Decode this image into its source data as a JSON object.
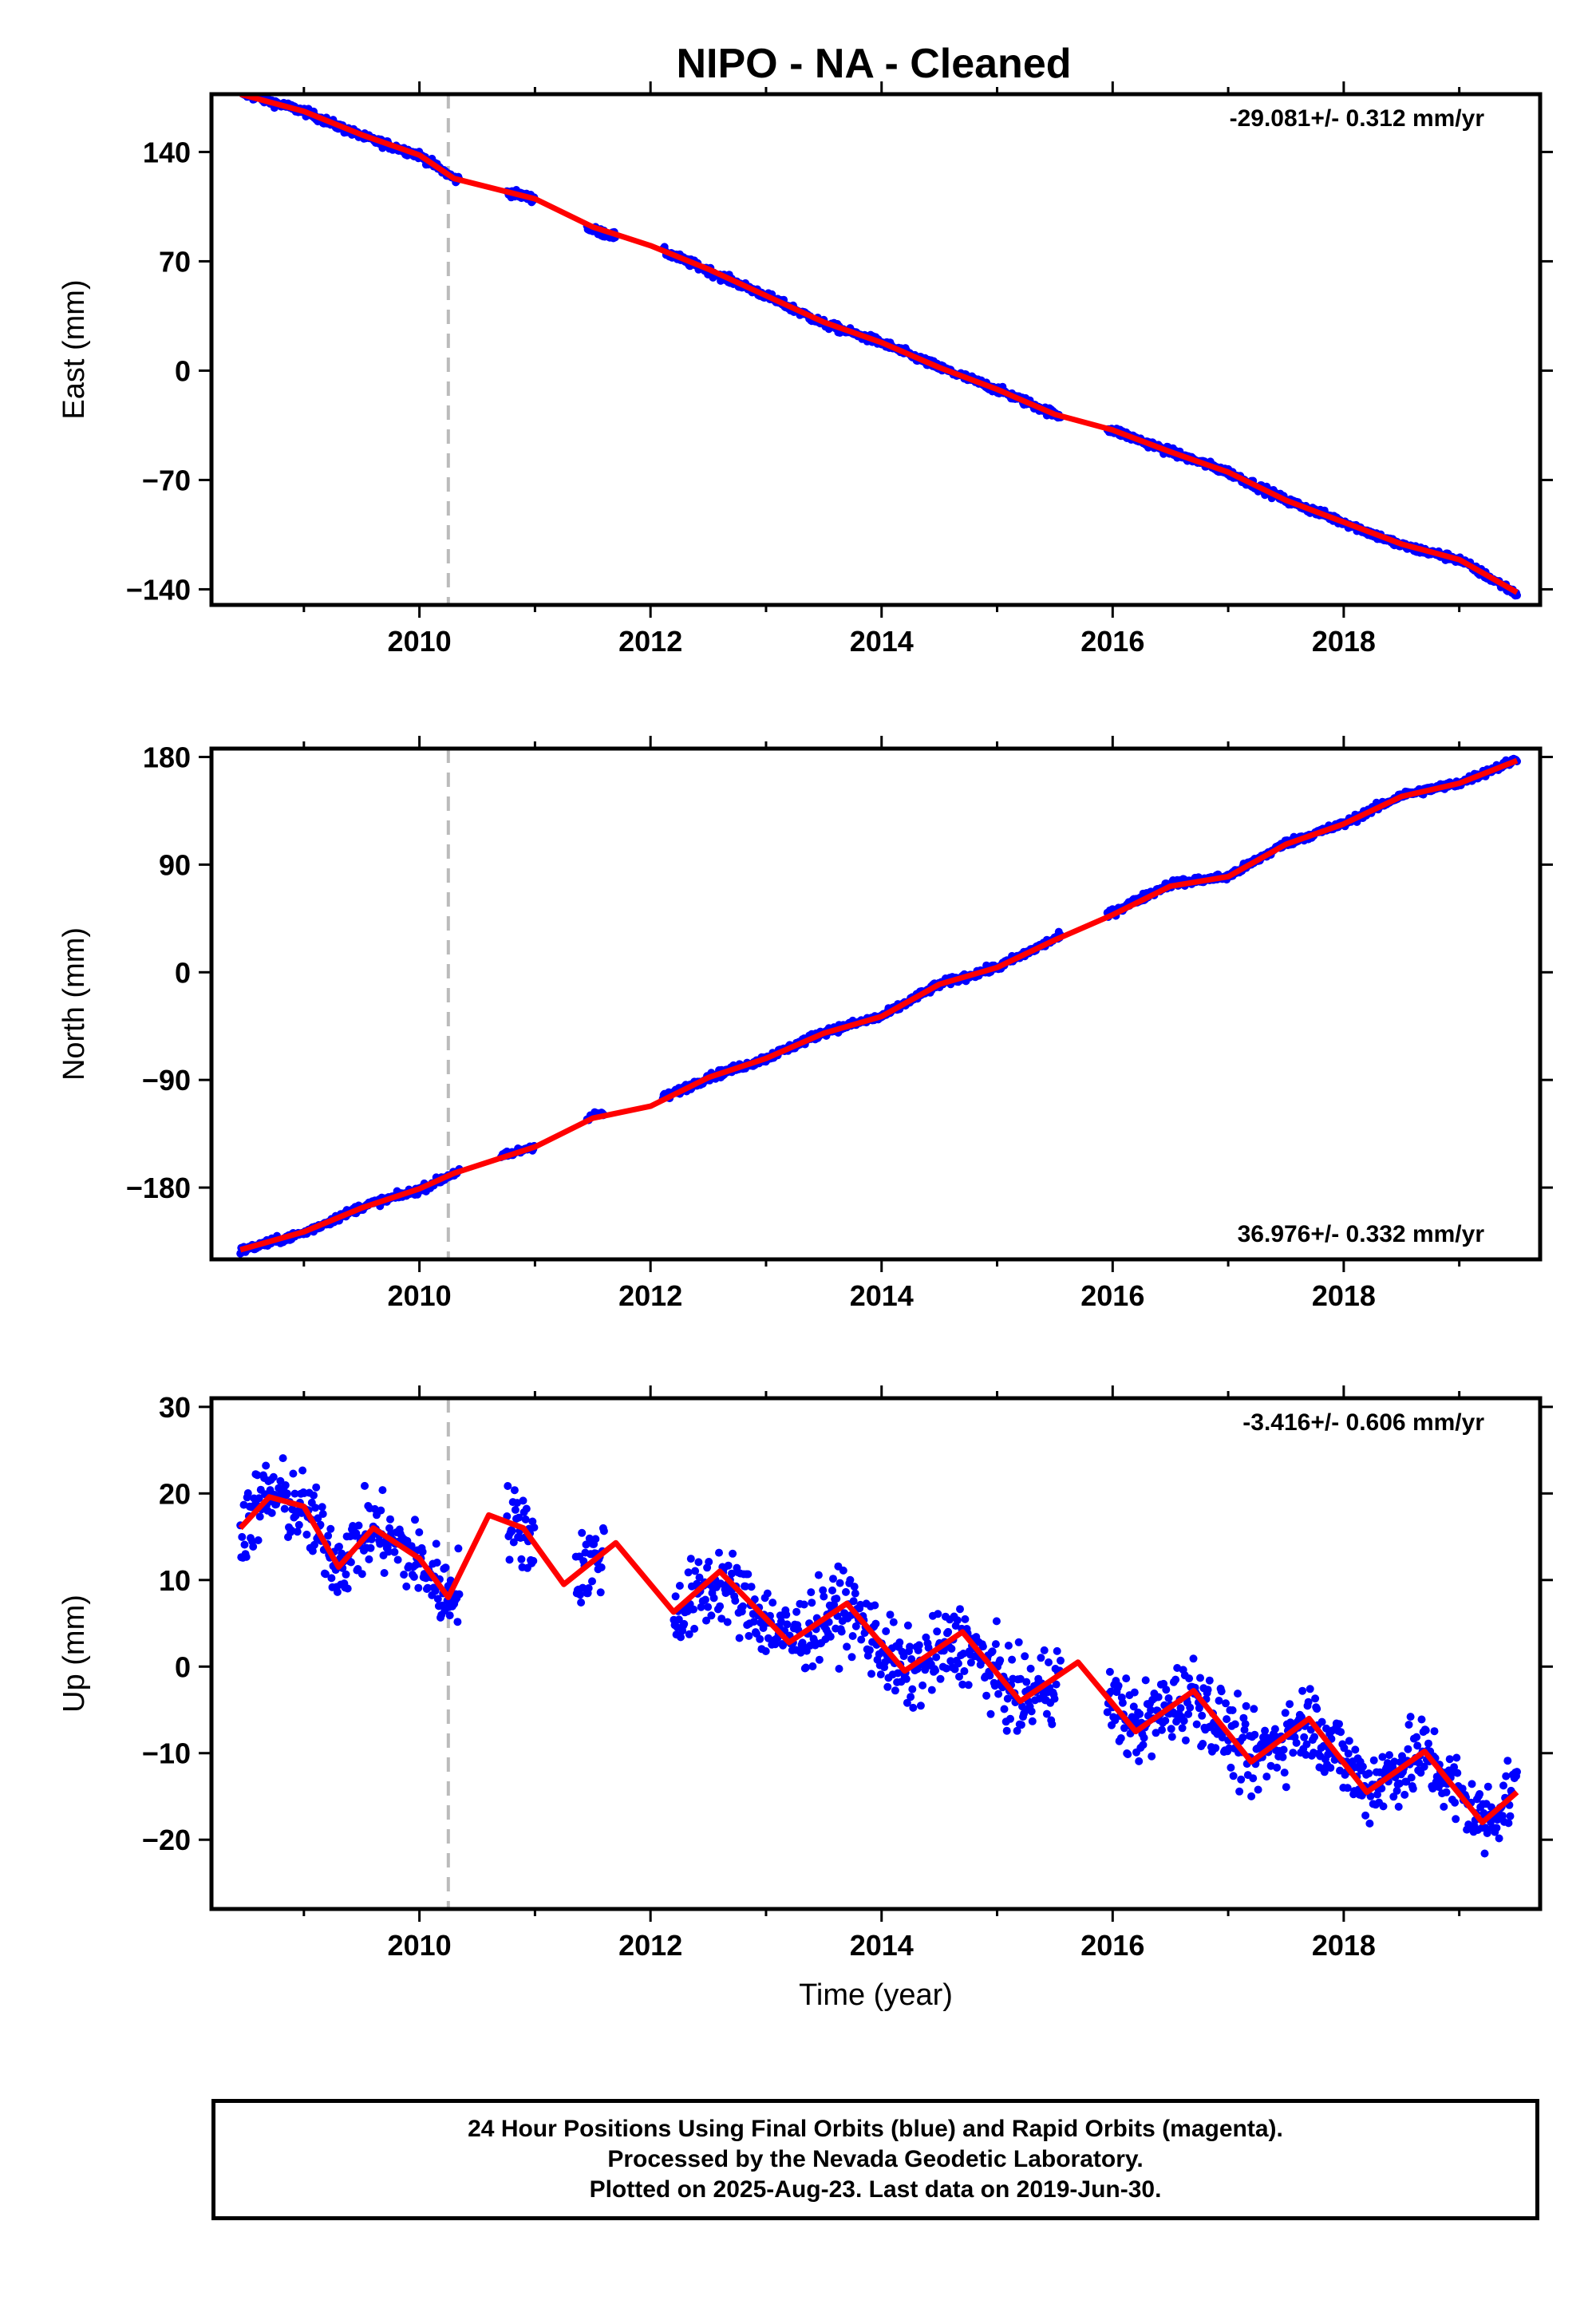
{
  "title": "NIPO  - NA - Cleaned",
  "footer": {
    "line1": "24 Hour Positions Using Final Orbits (blue) and Rapid Orbits (magenta).",
    "line2": "Processed by the Nevada Geodetic Laboratory.",
    "line3": "Plotted on 2025-Aug-23. Last data on 2019-Jun-30."
  },
  "colors": {
    "points": "#0000ff",
    "fit": "#ff0000",
    "event_line": "#bbbbbb"
  },
  "chart_data": [
    {
      "type": "scatter",
      "ylabel": "East (mm)",
      "xlabel": "",
      "rate_label": "-29.081+/- 0.312 mm/yr",
      "rate_position": "top-right",
      "xlim": [
        2008.2,
        2019.7
      ],
      "ylim": [
        -150,
        177
      ],
      "xticks": [
        2010,
        2012,
        2014,
        2016,
        2018
      ],
      "yticks": [
        140,
        70,
        0,
        -70,
        -140
      ],
      "ytick_labels": [
        "140",
        "70",
        "0",
        "−70",
        "−140"
      ],
      "event_line_x": 2010.25,
      "trend": {
        "x0": 2008.45,
        "y0": 178,
        "x1": 2019.5,
        "y1": -143
      },
      "annual_amplitude": 2.2,
      "noise": 1.8,
      "gaps": [
        [
          2010.35,
          2010.75
        ],
        [
          2011.0,
          2011.45
        ],
        [
          2011.7,
          2012.1
        ],
        [
          2015.55,
          2015.95
        ]
      ],
      "x": [
        2008.45,
        2009.0,
        2009.5,
        2010.0,
        2010.3,
        2011.0,
        2011.5,
        2012.0,
        2012.5,
        2013.0,
        2013.5,
        2014.0,
        2014.5,
        2015.0,
        2015.5,
        2016.0,
        2016.5,
        2017.0,
        2017.5,
        2018.0,
        2018.5,
        2019.0,
        2019.5
      ],
      "y": [
        178,
        166,
        150,
        138,
        123,
        110,
        90,
        80,
        64,
        48,
        30,
        18,
        2,
        -12,
        -28,
        -38,
        -52,
        -65,
        -83,
        -97,
        -112,
        -121,
        -143
      ],
      "fit_x": [
        2008.45,
        2009.0,
        2009.5,
        2010.0,
        2010.3,
        2011.0,
        2011.5,
        2012.0,
        2012.5,
        2013.0,
        2013.5,
        2014.0,
        2014.5,
        2015.0,
        2015.5,
        2016.0,
        2016.5,
        2017.0,
        2017.5,
        2018.0,
        2018.5,
        2019.0,
        2019.5
      ],
      "fit_y": [
        177,
        166,
        151,
        138,
        123,
        110,
        92,
        80,
        65,
        48,
        31,
        18,
        2,
        -12,
        -28,
        -38,
        -52,
        -65,
        -83,
        -97,
        -111,
        -121,
        -142
      ]
    },
    {
      "type": "scatter",
      "ylabel": "North (mm)",
      "xlabel": "",
      "rate_label": "36.976+/- 0.332 mm/yr",
      "rate_position": "bottom-right",
      "xlim": [
        2008.2,
        2019.7
      ],
      "ylim": [
        -240,
        187
      ],
      "xticks": [
        2010,
        2012,
        2014,
        2016,
        2018
      ],
      "yticks": [
        180,
        90,
        0,
        -90,
        -180
      ],
      "ytick_labels": [
        "180",
        "90",
        "0",
        "−90",
        "−180"
      ],
      "event_line_x": 2010.25,
      "trend": {
        "x0": 2008.45,
        "y0": -233,
        "x1": 2019.5,
        "y1": 178
      },
      "annual_amplitude": 2.5,
      "noise": 2.2,
      "gaps": [
        [
          2010.35,
          2010.7
        ],
        [
          2011.0,
          2011.45
        ],
        [
          2011.6,
          2012.1
        ],
        [
          2015.55,
          2015.95
        ]
      ],
      "x": [
        2008.45,
        2009.0,
        2009.5,
        2010.0,
        2010.3,
        2011.0,
        2011.5,
        2012.0,
        2012.5,
        2013.0,
        2013.5,
        2014.0,
        2014.5,
        2015.0,
        2015.5,
        2016.0,
        2016.5,
        2017.0,
        2017.5,
        2018.0,
        2018.5,
        2019.0,
        2019.5
      ],
      "y": [
        -233,
        -218,
        -196,
        -182,
        -168,
        -145,
        -120,
        -110,
        -88,
        -72,
        -50,
        -37,
        -10,
        4,
        28,
        50,
        74,
        80,
        108,
        124,
        148,
        158,
        178
      ],
      "fit_x": [
        2008.45,
        2009.0,
        2009.5,
        2010.0,
        2010.3,
        2011.0,
        2011.5,
        2012.0,
        2012.5,
        2013.0,
        2013.5,
        2014.0,
        2014.5,
        2015.0,
        2015.5,
        2016.0,
        2016.5,
        2017.0,
        2017.5,
        2018.0,
        2018.5,
        2019.0,
        2019.5
      ],
      "fit_y": [
        -232,
        -217,
        -197,
        -181,
        -168,
        -146,
        -122,
        -112,
        -88,
        -72,
        -51,
        -37,
        -10,
        4,
        27,
        48,
        72,
        80,
        107,
        124,
        147,
        158,
        177
      ]
    },
    {
      "type": "scatter",
      "ylabel": "Up (mm)",
      "xlabel": "Time (year)",
      "rate_label": "-3.416+/- 0.606 mm/yr",
      "rate_position": "top-right",
      "xlim": [
        2008.2,
        2019.7
      ],
      "ylim": [
        -28,
        31
      ],
      "xticks": [
        2010,
        2012,
        2014,
        2016,
        2018
      ],
      "yticks": [
        30,
        20,
        10,
        0,
        -10,
        -20
      ],
      "ytick_labels": [
        "30",
        "20",
        "10",
        "0",
        "−10",
        "−20"
      ],
      "event_line_x": 2010.25,
      "trend": {
        "x0": 2008.45,
        "y0": 19.7,
        "x1": 2019.5,
        "y1": -13
      },
      "annual_amplitude": 4.5,
      "noise": 3.2,
      "gaps": [
        [
          2010.35,
          2010.75
        ],
        [
          2011.0,
          2011.35
        ],
        [
          2011.6,
          2012.2
        ],
        [
          2015.55,
          2015.95
        ]
      ],
      "x": [
        2008.45,
        2008.7,
        2009.0,
        2009.3,
        2009.6,
        2010.0,
        2010.25,
        2010.6,
        2010.9,
        2011.25,
        2011.7,
        2012.2,
        2012.6,
        2013.2,
        2013.7,
        2014.2,
        2014.7,
        2015.2,
        2015.7,
        2016.2,
        2016.7,
        2017.2,
        2017.7,
        2018.2,
        2018.7,
        2019.2,
        2019.5
      ],
      "y": [
        16,
        20,
        18,
        12,
        16,
        12,
        8,
        17,
        16,
        10,
        14,
        6,
        10,
        3,
        7,
        -1,
        3,
        -4,
        0,
        -7,
        -3,
        -11,
        -6,
        -14,
        -10,
        -18,
        -14
      ],
      "fit_x": [
        2008.45,
        2008.7,
        2009.0,
        2009.3,
        2009.6,
        2010.0,
        2010.25,
        2010.6,
        2010.9,
        2011.25,
        2011.7,
        2012.2,
        2012.6,
        2013.2,
        2013.7,
        2014.2,
        2014.7,
        2015.2,
        2015.7,
        2016.2,
        2016.7,
        2017.2,
        2017.7,
        2018.2,
        2018.7,
        2019.2,
        2019.5
      ],
      "fit_y": [
        16,
        19.6,
        18.5,
        11.5,
        16,
        12.5,
        8,
        17.5,
        16,
        9.5,
        14.3,
        6.3,
        11,
        2.8,
        7.3,
        -0.5,
        4,
        -4,
        0.5,
        -7.5,
        -2.8,
        -11,
        -6,
        -14.5,
        -9.8,
        -18,
        -14.5
      ]
    }
  ]
}
